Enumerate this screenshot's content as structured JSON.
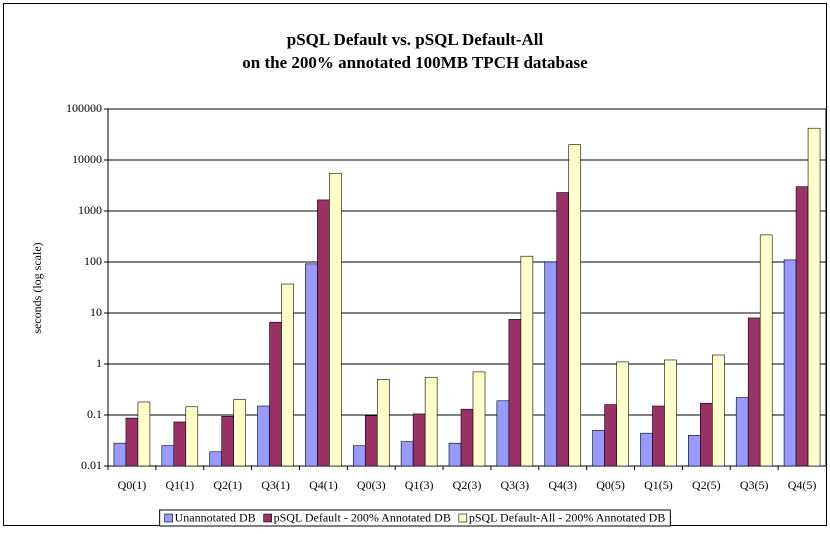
{
  "chart_data": {
    "type": "bar",
    "title": "pSQL Default vs. pSQL Default-All",
    "subtitle": "on the 200% annotated 100MB TPCH database",
    "y_label": "seconds (log scale)",
    "categories": [
      "Q0(1)",
      "Q1(1)",
      "Q2(1)",
      "Q3(1)",
      "Q4(1)",
      "Q0(3)",
      "Q1(3)",
      "Q2(3)",
      "Q3(3)",
      "Q4(3)",
      "Q0(5)",
      "Q1(5)",
      "Q2(5)",
      "Q3(5)",
      "Q4(5)"
    ],
    "series": [
      {
        "name": "Unannotated DB",
        "color": "#9999ff",
        "values": [
          0.028,
          0.025,
          0.019,
          0.15,
          92,
          0.025,
          0.03,
          0.028,
          0.19,
          100,
          0.05,
          0.044,
          0.04,
          0.22,
          110
        ]
      },
      {
        "name": "pSQL Default - 200% Annotated DB",
        "color": "#993366",
        "values": [
          0.087,
          0.073,
          0.094,
          6.6,
          1650,
          0.097,
          0.105,
          0.13,
          7.5,
          2300,
          0.16,
          0.15,
          0.17,
          8,
          3000
        ]
      },
      {
        "name": "pSQL Default-All - 200% Annotated DB",
        "color": "#ffffcc",
        "values": [
          0.18,
          0.145,
          0.2,
          37,
          5500,
          0.5,
          0.55,
          0.7,
          130,
          20000,
          1.1,
          1.2,
          1.5,
          340,
          42000
        ]
      }
    ],
    "ylim": [
      0.01,
      100000
    ],
    "yticks": [
      0.01,
      0.1,
      1,
      10,
      100,
      1000,
      10000,
      100000
    ],
    "log_scale": true,
    "grid": true,
    "legend": "bottom"
  }
}
